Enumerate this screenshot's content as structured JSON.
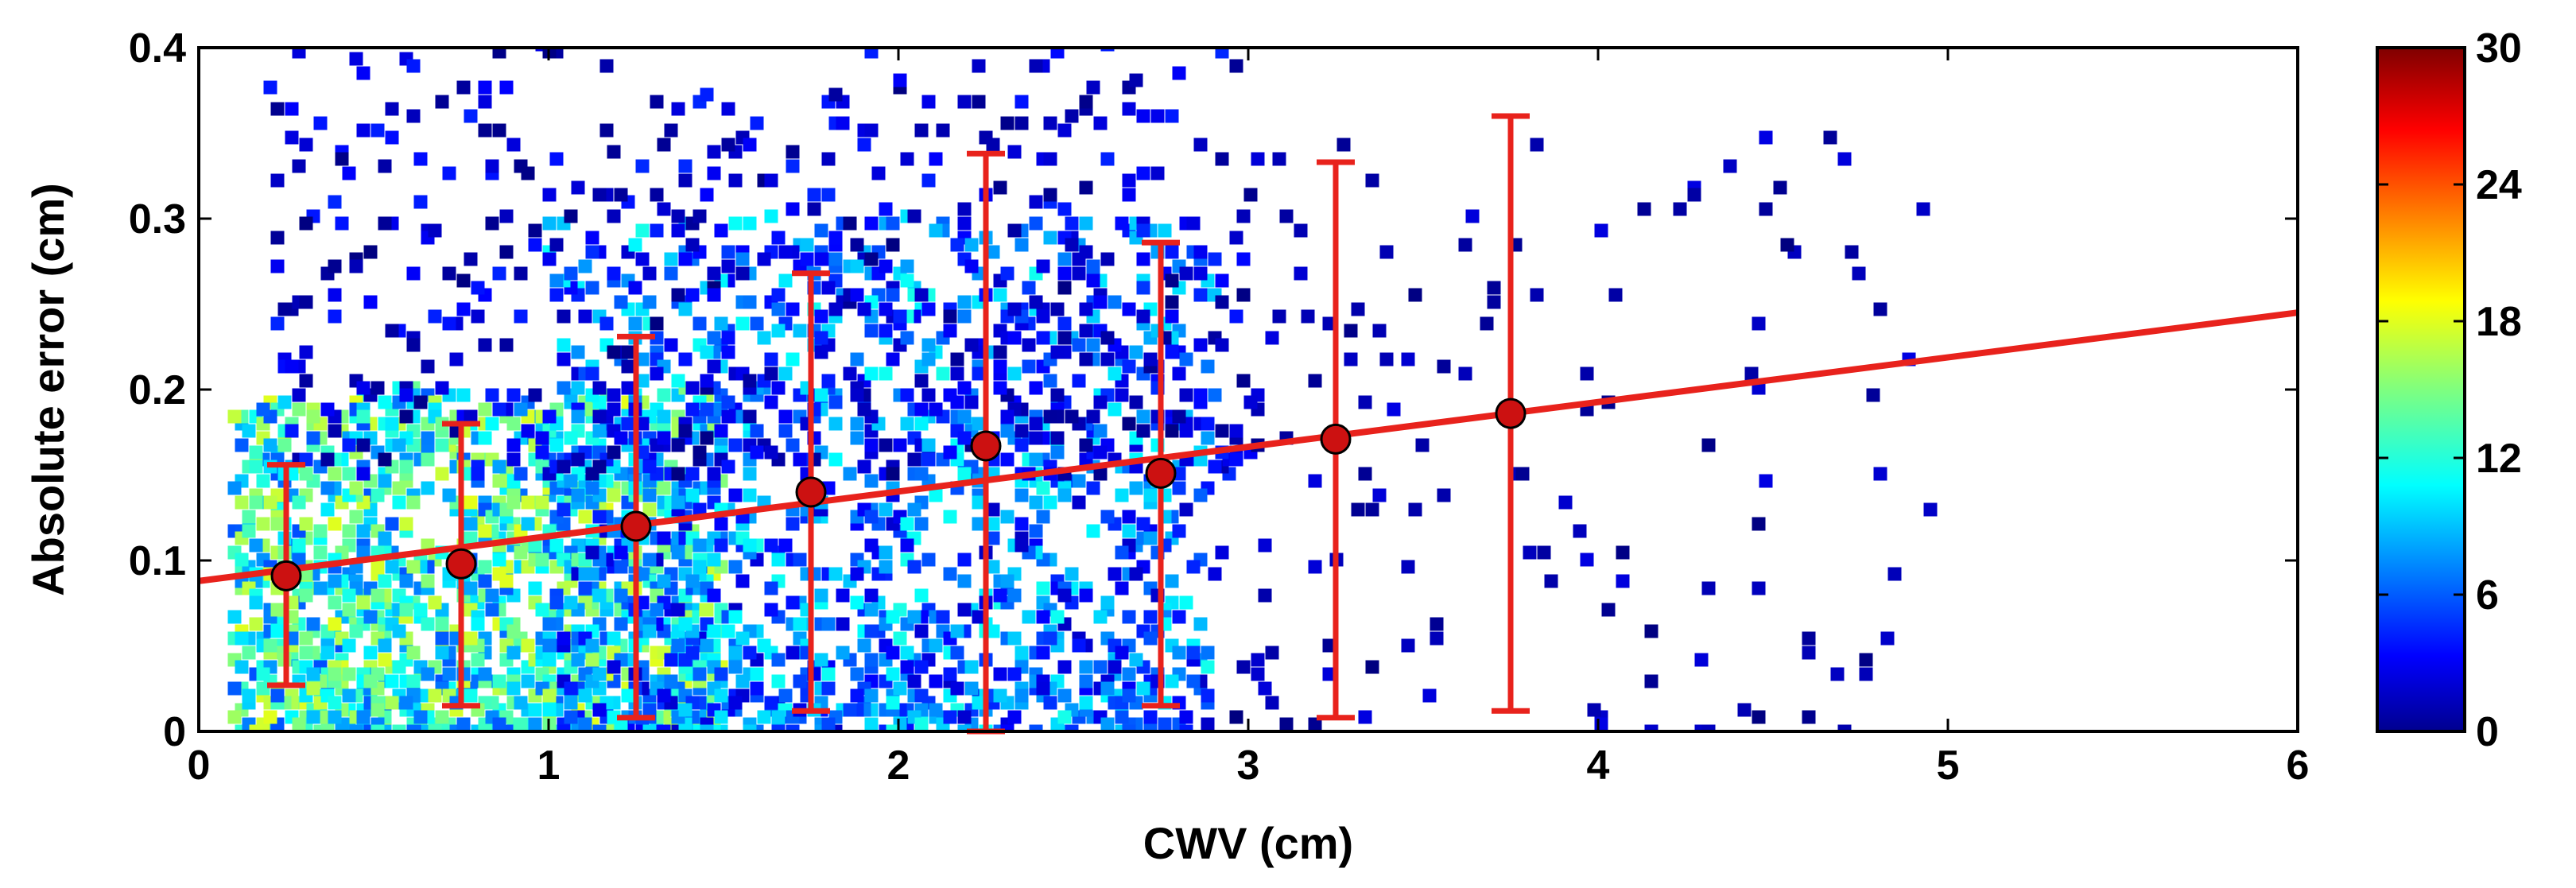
{
  "chart_data": {
    "type": "scatter",
    "title": "",
    "xlabel": "CWV (cm)",
    "ylabel": "Absolute error (cm)",
    "xlim": [
      0,
      6
    ],
    "ylim": [
      0,
      0.4
    ],
    "x_ticks": [
      "0",
      "1",
      "2",
      "3",
      "4",
      "5",
      "6"
    ],
    "y_ticks": [
      "0",
      "0.1",
      "0.2",
      "0.3",
      "0.4"
    ],
    "grid": false,
    "colorbar": {
      "range": [
        0,
        30
      ],
      "ticks": [
        "0",
        "6",
        "12",
        "18",
        "24",
        "30"
      ],
      "colormap": "jet"
    },
    "fit_line": {
      "x": [
        0,
        6
      ],
      "y": [
        0.088,
        0.245
      ],
      "color": "#e8221c"
    },
    "binned_means": {
      "x": [
        0.25,
        0.75,
        1.25,
        1.75,
        2.25,
        2.75,
        3.25,
        3.75
      ],
      "y": [
        0.091,
        0.098,
        0.12,
        0.14,
        0.167,
        0.151,
        0.171,
        0.186
      ],
      "lower": [
        0.027,
        0.015,
        0.008,
        0.012,
        0.0,
        0.015,
        0.008,
        0.012
      ],
      "upper": [
        0.156,
        0.18,
        0.231,
        0.268,
        0.338,
        0.286,
        0.333,
        0.36
      ],
      "color": "#e8221c"
    },
    "density_scatter": {
      "description_counts": "point density colored by count (0-30)",
      "clusters": [
        {
          "x_range": [
            0.1,
            1.5
          ],
          "y_range": [
            0.0,
            0.2
          ],
          "count_range": [
            6,
            18
          ],
          "n": 1400
        },
        {
          "x_range": [
            1.0,
            2.9
          ],
          "y_range": [
            0.0,
            0.3
          ],
          "count_range": [
            2,
            12
          ],
          "n": 1300
        },
        {
          "x_range": [
            0.2,
            3.0
          ],
          "y_range": [
            0.15,
            0.4
          ],
          "count_range": [
            0,
            5
          ],
          "n": 500
        },
        {
          "x_range": [
            2.9,
            5.0
          ],
          "y_range": [
            0.0,
            0.35
          ],
          "count_range": [
            0,
            3
          ],
          "n": 140
        }
      ]
    }
  }
}
